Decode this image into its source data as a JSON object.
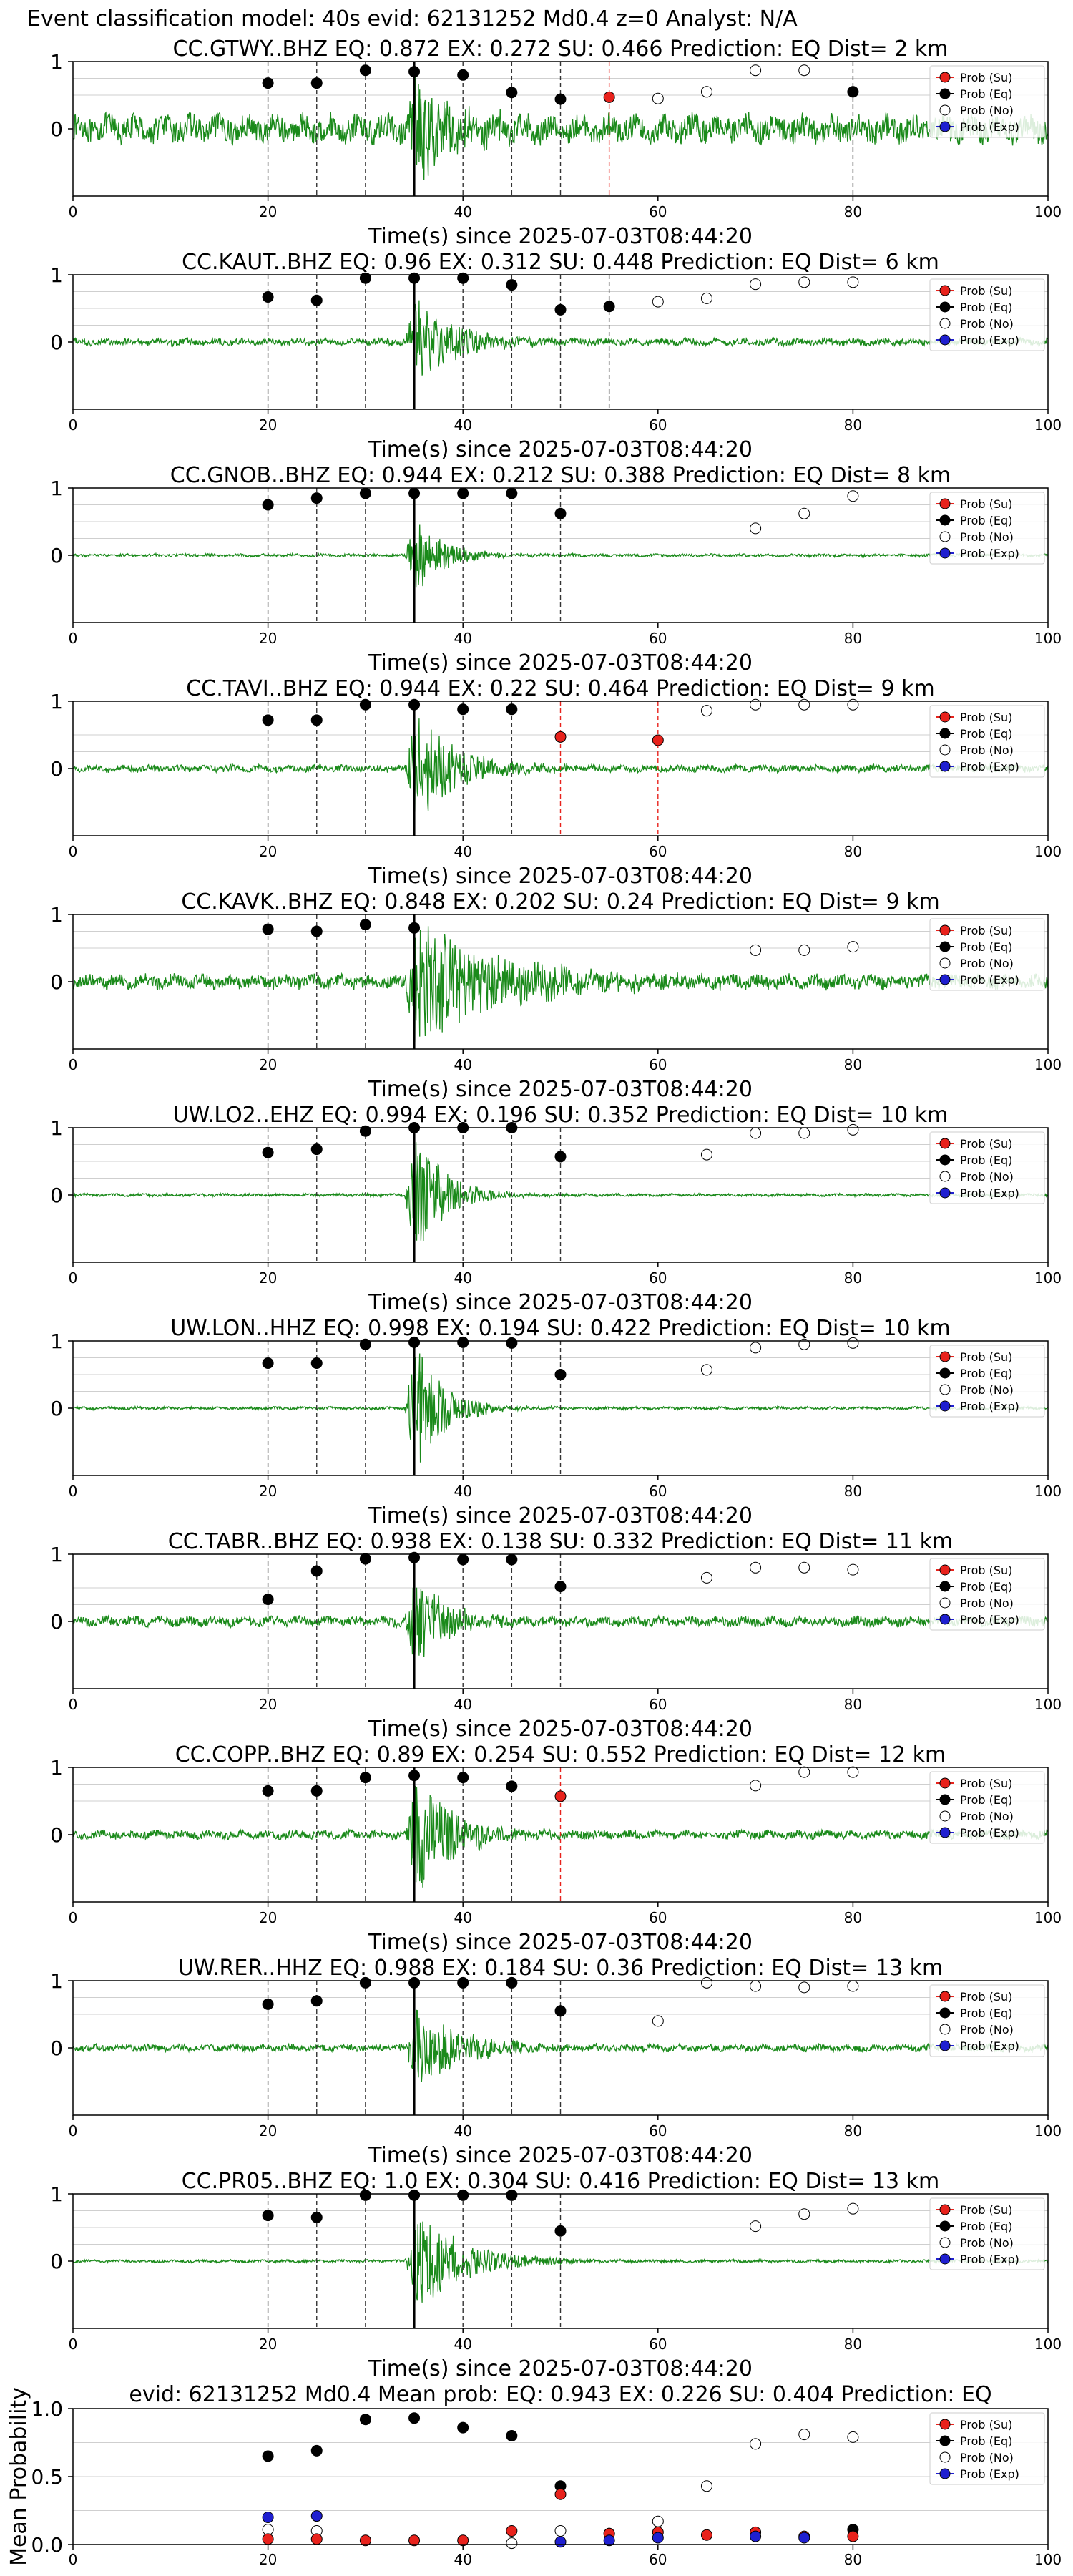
{
  "figure_title": "Event classification model: 40s evid: 62131252 Md0.4 z=0 Analyst: N/A",
  "legend_labels": {
    "su": "Prob (Su)",
    "eq": "Prob (Eq)",
    "no": "Prob (No)",
    "exp": "Prob (Exp)"
  },
  "colors": {
    "su": "#e8221c",
    "eq": "#000000",
    "no": "#ffffff",
    "exp": "#1f1fd0",
    "waveform": "#1a8a1a",
    "grid": "#cfcfcf"
  },
  "chart_data": [
    {
      "type": "scatter",
      "title": "CC.GTWY..BHZ   EQ: 0.872  EX: 0.272  SU: 0.466   Prediction: EQ    Dist= 2 km",
      "xlabel": "Time(s) since 2025-07-03T08:44:20",
      "xlim": [
        0,
        100
      ],
      "ylim": [
        -1,
        1
      ],
      "xticks": [
        0,
        20,
        40,
        60,
        80,
        100
      ],
      "yticks": [
        0,
        1
      ],
      "pick_time": 35,
      "amp": 0.2,
      "burst": 0.75,
      "decay": 4,
      "seg_color": "#000000",
      "windows": [
        {
          "t": 20,
          "cls": "eq",
          "p": 0.68
        },
        {
          "t": 25,
          "cls": "eq",
          "p": 0.68
        },
        {
          "t": 30,
          "cls": "eq",
          "p": 0.87
        },
        {
          "t": 35,
          "cls": "eq",
          "p": 0.85
        },
        {
          "t": 40,
          "cls": "eq",
          "p": 0.8
        },
        {
          "t": 45,
          "cls": "eq",
          "p": 0.54
        },
        {
          "t": 50,
          "cls": "eq",
          "p": 0.44
        },
        {
          "t": 55,
          "cls": "su",
          "p": 0.47
        },
        {
          "t": 60,
          "cls": "no",
          "p": 0.45
        },
        {
          "t": 65,
          "cls": "no",
          "p": 0.55
        },
        {
          "t": 70,
          "cls": "no",
          "p": 0.87
        },
        {
          "t": 75,
          "cls": "no",
          "p": 0.87
        },
        {
          "t": 80,
          "cls": "eq",
          "p": 0.55
        }
      ]
    },
    {
      "type": "scatter",
      "title": "CC.KAUT..BHZ   EQ: 0.96  EX: 0.312  SU: 0.448   Prediction: EQ    Dist= 6 km",
      "xlabel": "Time(s) since 2025-07-03T08:44:20",
      "xlim": [
        0,
        100
      ],
      "ylim": [
        -1,
        1
      ],
      "xticks": [
        0,
        20,
        40,
        60,
        80,
        100
      ],
      "yticks": [
        0,
        1
      ],
      "pick_time": 35,
      "amp": 0.05,
      "burst": 0.65,
      "decay": 4,
      "seg_color": "#000000",
      "windows": [
        {
          "t": 20,
          "cls": "eq",
          "p": 0.67
        },
        {
          "t": 25,
          "cls": "eq",
          "p": 0.62
        },
        {
          "t": 30,
          "cls": "eq",
          "p": 0.95
        },
        {
          "t": 35,
          "cls": "eq",
          "p": 0.95
        },
        {
          "t": 40,
          "cls": "eq",
          "p": 0.95
        },
        {
          "t": 45,
          "cls": "eq",
          "p": 0.85
        },
        {
          "t": 50,
          "cls": "eq",
          "p": 0.48
        },
        {
          "t": 55,
          "cls": "eq",
          "p": 0.53
        },
        {
          "t": 60,
          "cls": "no",
          "p": 0.6
        },
        {
          "t": 65,
          "cls": "no",
          "p": 0.65
        },
        {
          "t": 70,
          "cls": "no",
          "p": 0.86
        },
        {
          "t": 75,
          "cls": "no",
          "p": 0.89
        },
        {
          "t": 80,
          "cls": "no",
          "p": 0.89
        }
      ]
    },
    {
      "type": "scatter",
      "title": "CC.GNOB..BHZ   EQ: 0.944  EX: 0.212  SU: 0.388   Prediction: EQ    Dist= 8 km",
      "xlabel": "Time(s) since 2025-07-03T08:44:20",
      "xlim": [
        0,
        100
      ],
      "ylim": [
        -1,
        1
      ],
      "xticks": [
        0,
        20,
        40,
        60,
        80,
        100
      ],
      "yticks": [
        0,
        1
      ],
      "pick_time": 35,
      "amp": 0.02,
      "burst": 0.55,
      "decay": 3,
      "seg_color": "#000000",
      "windows": [
        {
          "t": 20,
          "cls": "eq",
          "p": 0.75
        },
        {
          "t": 25,
          "cls": "eq",
          "p": 0.85
        },
        {
          "t": 30,
          "cls": "eq",
          "p": 0.92
        },
        {
          "t": 35,
          "cls": "eq",
          "p": 0.92
        },
        {
          "t": 40,
          "cls": "eq",
          "p": 0.92
        },
        {
          "t": 45,
          "cls": "eq",
          "p": 0.92
        },
        {
          "t": 50,
          "cls": "eq",
          "p": 0.62
        },
        {
          "t": 70,
          "cls": "no",
          "p": 0.4
        },
        {
          "t": 75,
          "cls": "no",
          "p": 0.62
        },
        {
          "t": 80,
          "cls": "no",
          "p": 0.88
        }
      ]
    },
    {
      "type": "scatter",
      "title": "CC.TAVI..BHZ   EQ: 0.944  EX: 0.22  SU: 0.464   Prediction: EQ    Dist= 9 km",
      "xlabel": "Time(s) since 2025-07-03T08:44:20",
      "xlim": [
        0,
        100
      ],
      "ylim": [
        -1,
        1
      ],
      "xticks": [
        0,
        20,
        40,
        60,
        80,
        100
      ],
      "yticks": [
        0,
        1
      ],
      "pick_time": 35,
      "amp": 0.05,
      "burst": 0.85,
      "decay": 4,
      "seg_color": "#000000",
      "windows": [
        {
          "t": 20,
          "cls": "eq",
          "p": 0.72
        },
        {
          "t": 25,
          "cls": "eq",
          "p": 0.72
        },
        {
          "t": 30,
          "cls": "eq",
          "p": 0.95
        },
        {
          "t": 35,
          "cls": "eq",
          "p": 0.95
        },
        {
          "t": 40,
          "cls": "eq",
          "p": 0.88
        },
        {
          "t": 45,
          "cls": "eq",
          "p": 0.88
        },
        {
          "t": 50,
          "cls": "su",
          "p": 0.47
        },
        {
          "t": 60,
          "cls": "su",
          "p": 0.42
        },
        {
          "t": 65,
          "cls": "no",
          "p": 0.86
        },
        {
          "t": 70,
          "cls": "no",
          "p": 0.95
        },
        {
          "t": 75,
          "cls": "no",
          "p": 0.95
        },
        {
          "t": 80,
          "cls": "no",
          "p": 0.95
        }
      ]
    },
    {
      "type": "scatter",
      "title": "CC.KAVK..BHZ   EQ: 0.848  EX: 0.202  SU: 0.24   Prediction: EQ    Dist= 9 km",
      "xlabel": "Time(s) since 2025-07-03T08:44:20",
      "xlim": [
        0,
        100
      ],
      "ylim": [
        -1,
        1
      ],
      "xticks": [
        0,
        20,
        40,
        60,
        80,
        100
      ],
      "yticks": [
        0,
        1
      ],
      "pick_time": 35,
      "amp": 0.1,
      "burst": 0.95,
      "decay": 9,
      "seg_color": "#000000",
      "windows": [
        {
          "t": 20,
          "cls": "eq",
          "p": 0.78
        },
        {
          "t": 25,
          "cls": "eq",
          "p": 0.75
        },
        {
          "t": 30,
          "cls": "eq",
          "p": 0.85
        },
        {
          "t": 35,
          "cls": "eq",
          "p": 0.8
        },
        {
          "t": 70,
          "cls": "no",
          "p": 0.47
        },
        {
          "t": 75,
          "cls": "no",
          "p": 0.47
        },
        {
          "t": 80,
          "cls": "no",
          "p": 0.52
        }
      ]
    },
    {
      "type": "scatter",
      "title": "UW.LO2..EHZ   EQ: 0.994  EX: 0.196  SU: 0.352   Prediction: EQ    Dist= 10 km",
      "xlabel": "Time(s) since 2025-07-03T08:44:20",
      "xlim": [
        0,
        100
      ],
      "ylim": [
        -1,
        1
      ],
      "xticks": [
        0,
        20,
        40,
        60,
        80,
        100
      ],
      "yticks": [
        0,
        1
      ],
      "pick_time": 35,
      "amp": 0.02,
      "burst": 0.95,
      "decay": 3,
      "seg_color": "#000000",
      "windows": [
        {
          "t": 20,
          "cls": "eq",
          "p": 0.63
        },
        {
          "t": 25,
          "cls": "eq",
          "p": 0.68
        },
        {
          "t": 30,
          "cls": "eq",
          "p": 0.95
        },
        {
          "t": 35,
          "cls": "eq",
          "p": 1.0
        },
        {
          "t": 40,
          "cls": "eq",
          "p": 1.0
        },
        {
          "t": 45,
          "cls": "eq",
          "p": 1.0
        },
        {
          "t": 50,
          "cls": "eq",
          "p": 0.57
        },
        {
          "t": 65,
          "cls": "no",
          "p": 0.6
        },
        {
          "t": 70,
          "cls": "no",
          "p": 0.92
        },
        {
          "t": 75,
          "cls": "no",
          "p": 0.92
        },
        {
          "t": 80,
          "cls": "no",
          "p": 0.97
        }
      ]
    },
    {
      "type": "scatter",
      "title": "UW.LON..HHZ   EQ: 0.998  EX: 0.194  SU: 0.422   Prediction: EQ    Dist= 10 km",
      "xlabel": "Time(s) since 2025-07-03T08:44:20",
      "xlim": [
        0,
        100
      ],
      "ylim": [
        -1,
        1
      ],
      "xticks": [
        0,
        20,
        40,
        60,
        80,
        100
      ],
      "yticks": [
        0,
        1
      ],
      "pick_time": 35,
      "amp": 0.02,
      "burst": 0.95,
      "decay": 3,
      "seg_color": "#000000",
      "windows": [
        {
          "t": 20,
          "cls": "eq",
          "p": 0.67
        },
        {
          "t": 25,
          "cls": "eq",
          "p": 0.67
        },
        {
          "t": 30,
          "cls": "eq",
          "p": 0.95
        },
        {
          "t": 35,
          "cls": "eq",
          "p": 0.98
        },
        {
          "t": 40,
          "cls": "eq",
          "p": 0.98
        },
        {
          "t": 45,
          "cls": "eq",
          "p": 0.97
        },
        {
          "t": 50,
          "cls": "eq",
          "p": 0.5
        },
        {
          "t": 65,
          "cls": "no",
          "p": 0.57
        },
        {
          "t": 70,
          "cls": "no",
          "p": 0.9
        },
        {
          "t": 75,
          "cls": "no",
          "p": 0.95
        },
        {
          "t": 80,
          "cls": "no",
          "p": 0.97
        }
      ]
    },
    {
      "type": "scatter",
      "title": "CC.TABR..BHZ   EQ: 0.938  EX: 0.138  SU: 0.332   Prediction: EQ    Dist= 11 km",
      "xlabel": "Time(s) since 2025-07-03T08:44:20",
      "xlim": [
        0,
        100
      ],
      "ylim": [
        -1,
        1
      ],
      "xticks": [
        0,
        20,
        40,
        60,
        80,
        100
      ],
      "yticks": [
        0,
        1
      ],
      "pick_time": 35,
      "amp": 0.07,
      "burst": 0.75,
      "decay": 3,
      "seg_color": "#000000",
      "windows": [
        {
          "t": 20,
          "cls": "eq",
          "p": 0.33
        },
        {
          "t": 25,
          "cls": "eq",
          "p": 0.75
        },
        {
          "t": 30,
          "cls": "eq",
          "p": 0.93
        },
        {
          "t": 35,
          "cls": "eq",
          "p": 0.95
        },
        {
          "t": 40,
          "cls": "eq",
          "p": 0.92
        },
        {
          "t": 45,
          "cls": "eq",
          "p": 0.92
        },
        {
          "t": 50,
          "cls": "eq",
          "p": 0.52
        },
        {
          "t": 65,
          "cls": "no",
          "p": 0.65
        },
        {
          "t": 70,
          "cls": "no",
          "p": 0.8
        },
        {
          "t": 75,
          "cls": "no",
          "p": 0.8
        },
        {
          "t": 80,
          "cls": "no",
          "p": 0.77
        }
      ]
    },
    {
      "type": "scatter",
      "title": "CC.COPP..BHZ   EQ: 0.89  EX: 0.254  SU: 0.552   Prediction: EQ    Dist= 12 km",
      "xlabel": "Time(s) since 2025-07-03T08:44:20",
      "xlim": [
        0,
        100
      ],
      "ylim": [
        -1,
        1
      ],
      "xticks": [
        0,
        20,
        40,
        60,
        80,
        100
      ],
      "yticks": [
        0,
        1
      ],
      "pick_time": 35,
      "amp": 0.06,
      "burst": 0.9,
      "decay": 4,
      "seg_color": "#000000",
      "windows": [
        {
          "t": 20,
          "cls": "eq",
          "p": 0.65
        },
        {
          "t": 25,
          "cls": "eq",
          "p": 0.65
        },
        {
          "t": 30,
          "cls": "eq",
          "p": 0.85
        },
        {
          "t": 35,
          "cls": "eq",
          "p": 0.88
        },
        {
          "t": 40,
          "cls": "eq",
          "p": 0.85
        },
        {
          "t": 45,
          "cls": "eq",
          "p": 0.72
        },
        {
          "t": 50,
          "cls": "su",
          "p": 0.57
        },
        {
          "t": 70,
          "cls": "no",
          "p": 0.73
        },
        {
          "t": 75,
          "cls": "no",
          "p": 0.93
        },
        {
          "t": 80,
          "cls": "no",
          "p": 0.93
        }
      ]
    },
    {
      "type": "scatter",
      "title": "UW.RER..HHZ   EQ: 0.988  EX: 0.184  SU: 0.36   Prediction: EQ    Dist= 13 km",
      "xlabel": "Time(s) since 2025-07-03T08:44:20",
      "xlim": [
        0,
        100
      ],
      "ylim": [
        -1,
        1
      ],
      "xticks": [
        0,
        20,
        40,
        60,
        80,
        100
      ],
      "yticks": [
        0,
        1
      ],
      "pick_time": 35,
      "amp": 0.05,
      "burst": 0.6,
      "decay": 5,
      "seg_color": "#000000",
      "windows": [
        {
          "t": 20,
          "cls": "eq",
          "p": 0.65
        },
        {
          "t": 25,
          "cls": "eq",
          "p": 0.7
        },
        {
          "t": 30,
          "cls": "eq",
          "p": 0.97
        },
        {
          "t": 35,
          "cls": "eq",
          "p": 0.97
        },
        {
          "t": 40,
          "cls": "eq",
          "p": 0.97
        },
        {
          "t": 45,
          "cls": "eq",
          "p": 0.97
        },
        {
          "t": 50,
          "cls": "eq",
          "p": 0.55
        },
        {
          "t": 60,
          "cls": "no",
          "p": 0.4
        },
        {
          "t": 65,
          "cls": "no",
          "p": 0.97
        },
        {
          "t": 70,
          "cls": "no",
          "p": 0.92
        },
        {
          "t": 75,
          "cls": "no",
          "p": 0.9
        },
        {
          "t": 80,
          "cls": "no",
          "p": 0.92
        }
      ]
    },
    {
      "type": "scatter",
      "title": "CC.PR05..BHZ   EQ: 1.0  EX: 0.304  SU: 0.416   Prediction: EQ    Dist= 13 km",
      "xlabel": "Time(s) since 2025-07-03T08:44:20",
      "xlim": [
        0,
        100
      ],
      "ylim": [
        -1,
        1
      ],
      "xticks": [
        0,
        20,
        40,
        60,
        80,
        100
      ],
      "yticks": [
        0,
        1
      ],
      "pick_time": 35,
      "amp": 0.02,
      "burst": 0.75,
      "decay": 5,
      "seg_color": "#000000",
      "windows": [
        {
          "t": 20,
          "cls": "eq",
          "p": 0.68
        },
        {
          "t": 25,
          "cls": "eq",
          "p": 0.65
        },
        {
          "t": 30,
          "cls": "eq",
          "p": 0.98
        },
        {
          "t": 35,
          "cls": "eq",
          "p": 0.98
        },
        {
          "t": 40,
          "cls": "eq",
          "p": 0.98
        },
        {
          "t": 45,
          "cls": "eq",
          "p": 0.98
        },
        {
          "t": 50,
          "cls": "eq",
          "p": 0.45
        },
        {
          "t": 70,
          "cls": "no",
          "p": 0.52
        },
        {
          "t": 75,
          "cls": "no",
          "p": 0.7
        },
        {
          "t": 80,
          "cls": "no",
          "p": 0.78
        }
      ]
    },
    {
      "type": "scatter",
      "title": "evid: 62131252  Md0.4   Mean prob:   EQ: 0.943  EX: 0.226  SU: 0.404   Prediction: EQ",
      "ylabel": "Mean Probability",
      "xlim": [
        0,
        100
      ],
      "ylim": [
        0,
        1
      ],
      "xticks": [
        0,
        20,
        40,
        60,
        80,
        100
      ],
      "yticks": [
        0.0,
        0.5,
        1.0
      ],
      "ytick_labels": [
        "0.0",
        "0.5",
        "1.0"
      ],
      "series": [
        {
          "name": "Prob (Eq)",
          "cls": "eq",
          "x": [
            20,
            25,
            30,
            35,
            40,
            45,
            50,
            80
          ],
          "y": [
            0.65,
            0.69,
            0.92,
            0.93,
            0.86,
            0.8,
            0.43,
            0.11
          ]
        },
        {
          "name": "Prob (No)",
          "cls": "no",
          "x": [
            20,
            25,
            45,
            50,
            55,
            60,
            65,
            70,
            75,
            80
          ],
          "y": [
            0.11,
            0.1,
            0.01,
            0.1,
            0.08,
            0.17,
            0.43,
            0.74,
            0.81,
            0.79
          ]
        },
        {
          "name": "Prob (Su)",
          "cls": "su",
          "x": [
            20,
            25,
            30,
            35,
            40,
            45,
            50,
            55,
            60,
            65,
            70,
            75,
            80
          ],
          "y": [
            0.04,
            0.04,
            0.03,
            0.03,
            0.03,
            0.1,
            0.37,
            0.08,
            0.09,
            0.07,
            0.09,
            0.06,
            0.06
          ]
        },
        {
          "name": "Prob (Exp)",
          "cls": "exp",
          "x": [
            20,
            25,
            50,
            55,
            60,
            70,
            75
          ],
          "y": [
            0.2,
            0.21,
            0.02,
            0.03,
            0.05,
            0.06,
            0.05
          ]
        }
      ]
    }
  ]
}
